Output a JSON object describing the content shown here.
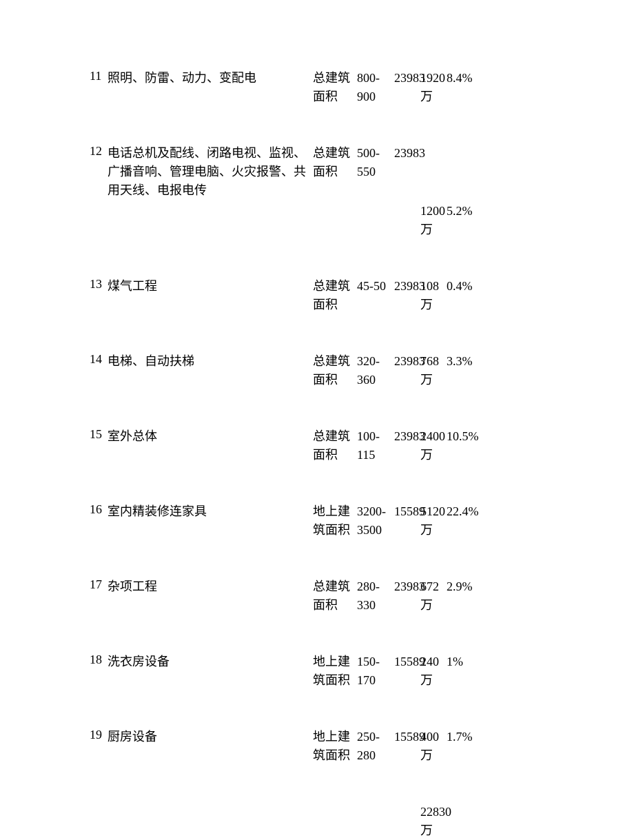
{
  "rows": [
    {
      "num": "11",
      "name": "照明、防雷、动力、变配电",
      "area": "总建筑面积",
      "range": "800-900",
      "qty": "23983",
      "cost": "1920万",
      "pct": "8.4%"
    },
    {
      "num": "12",
      "name": "电话总机及配线、闭路电视、监视、广播音响、管理电脑、火灾报警、共用天线、电报电传",
      "area": "总建筑面积",
      "range": "500-550",
      "qty": "23983",
      "cost": "",
      "pct": ""
    },
    {
      "num": "13",
      "name": "煤气工程",
      "area": "总建筑面积",
      "range": "45-50",
      "qty": "23983",
      "cost": "108万",
      "pct": "0.4%"
    },
    {
      "num": "14",
      "name": "电梯、自动扶梯",
      "area": "总建筑面积",
      "range": "320-360",
      "qty": "23983",
      "cost": "768万",
      "pct": "3.3%"
    },
    {
      "num": "15",
      "name": "室外总体",
      "area": "总建筑面积",
      "range": "100-115",
      "qty": "23983",
      "cost": "2400万",
      "pct": "10.5%"
    },
    {
      "num": "16",
      "name": "室内精装修连家具",
      "area": "地上建筑面积",
      "range": "3200-3500",
      "qty": "15589",
      "cost": "5120万",
      "pct": "22.4%"
    },
    {
      "num": "17",
      "name": "杂项工程",
      "area": "总建筑面积",
      "range": "280-330",
      "qty": "23983",
      "cost": "672万",
      "pct": "2.9%"
    },
    {
      "num": "18",
      "name": "洗衣房设备",
      "area": "地上建筑面积",
      "range": "150-170",
      "qty": "15589",
      "cost": "240万",
      "pct": "1%"
    },
    {
      "num": "19",
      "name": "厨房设备",
      "area": "地上建筑面积",
      "range": "250-280",
      "qty": "15589",
      "cost": "400万",
      "pct": "1.7%"
    }
  ],
  "row12_extra": {
    "cost": "1200万",
    "pct": "5.2%"
  },
  "total": {
    "cost": "22830万"
  },
  "colors": {
    "text": "#000000",
    "bg": "#ffffff"
  },
  "fontsize": 18
}
